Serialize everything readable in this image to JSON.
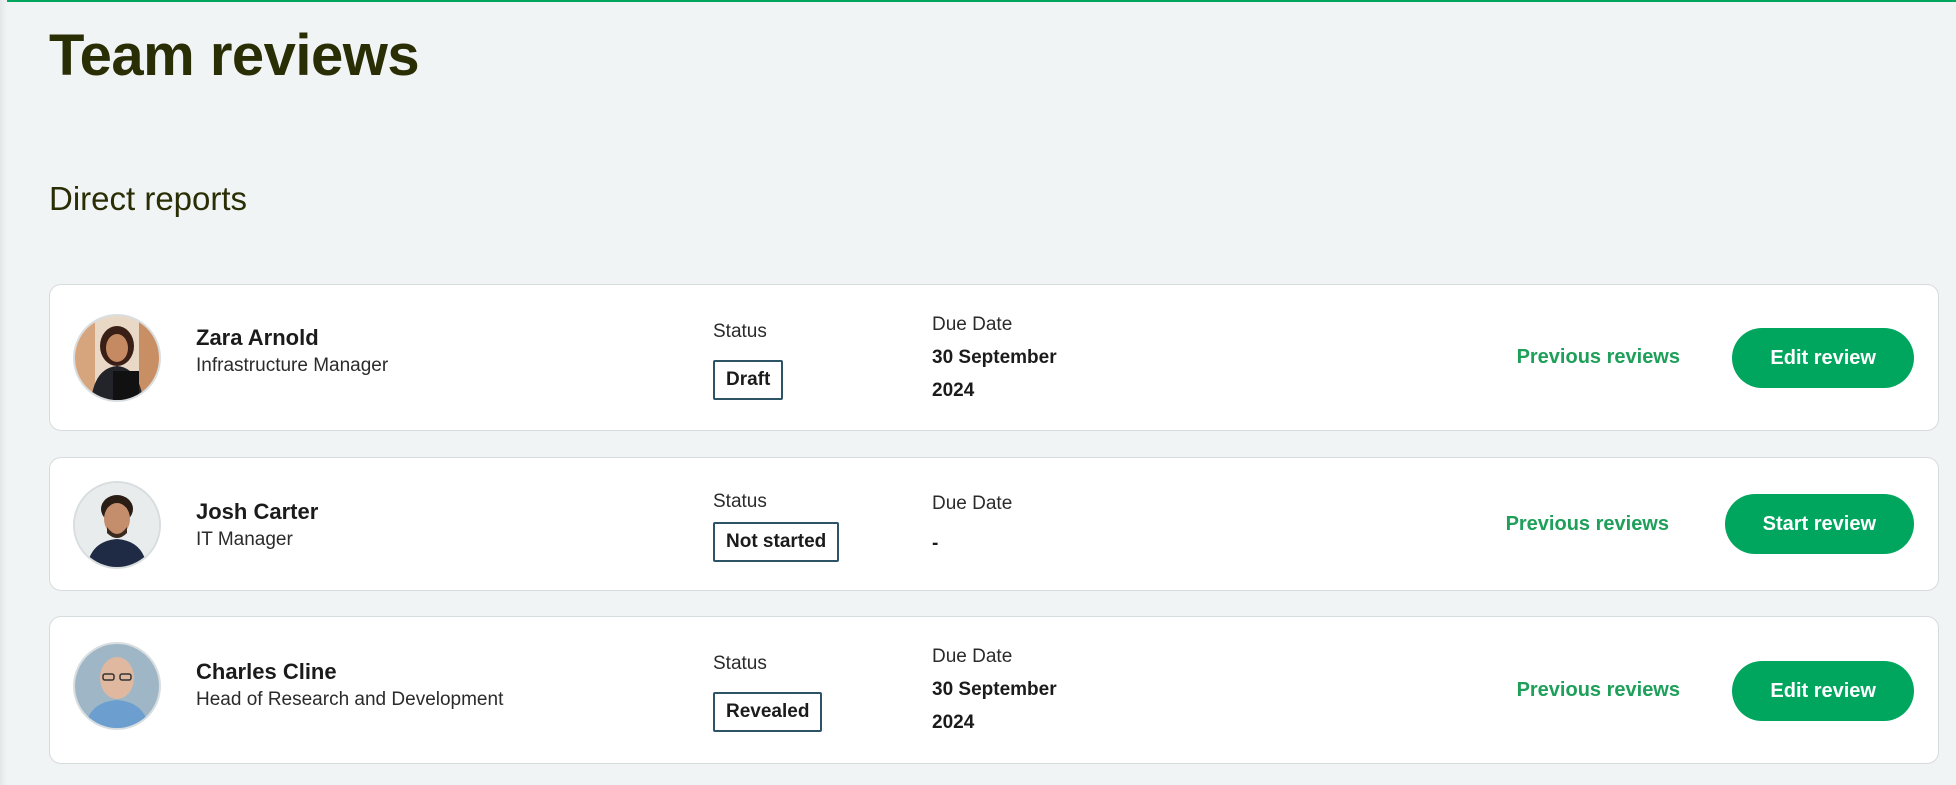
{
  "page": {
    "title": "Team reviews",
    "section_title": "Direct reports",
    "accent_color": "#00a65e"
  },
  "reports": [
    {
      "name": "Zara Arnold",
      "role": "Infrastructure Manager",
      "status_label": "Status",
      "status": "Draft",
      "due_label": "Due Date",
      "due_line1": "30 September",
      "due_line2": "2024",
      "previous_label": "Previous reviews",
      "action_label": "Edit review",
      "avatar_icon": "avatar-woman"
    },
    {
      "name": "Josh Carter",
      "role": "IT Manager",
      "status_label": "Status",
      "status": "Not started",
      "due_label": "Due Date",
      "due_line1": "-",
      "due_line2": "",
      "previous_label": "Previous reviews",
      "action_label": "Start review",
      "avatar_icon": "avatar-man"
    },
    {
      "name": "Charles Cline",
      "role": "Head of Research and Development",
      "status_label": "Status",
      "status": "Revealed",
      "due_label": "Due Date",
      "due_line1": "30 September",
      "due_line2": "2024",
      "previous_label": "Previous reviews",
      "action_label": "Edit review",
      "avatar_icon": "avatar-man-bald"
    }
  ]
}
